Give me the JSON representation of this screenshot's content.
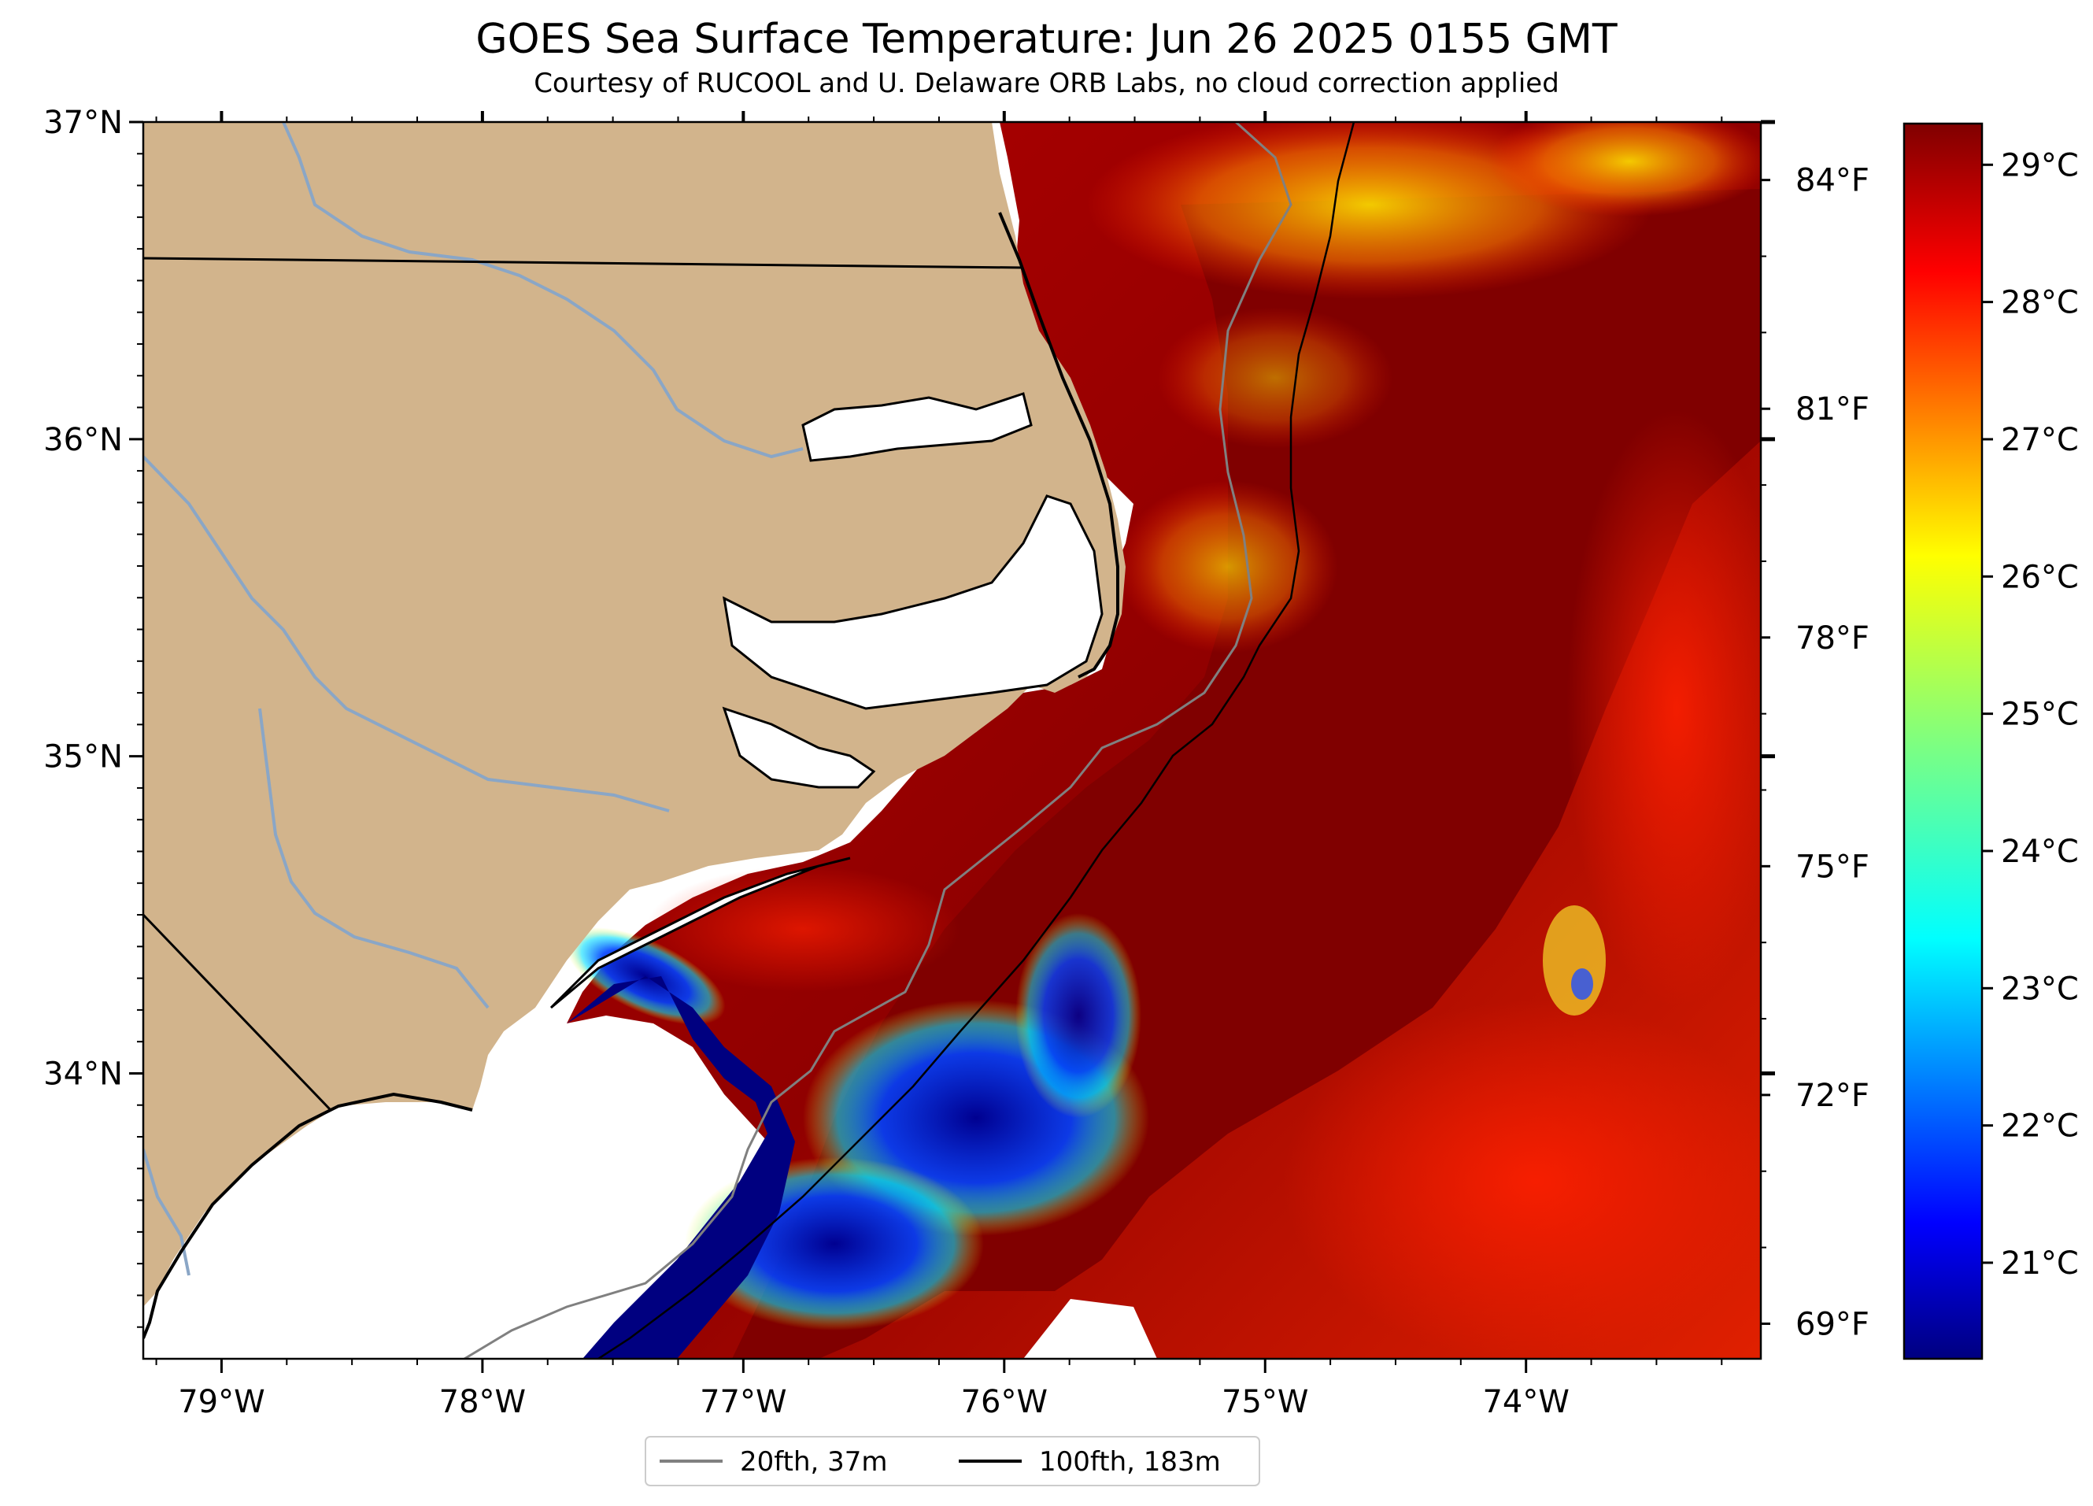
{
  "title": "GOES Sea Surface Temperature: Jun 26 2025 0155 GMT",
  "subtitle": "Courtesy of RUCOOL and U. Delaware ORB Labs, no cloud correction applied",
  "map": {
    "lon_range": [
      -79.3,
      -73.1
    ],
    "lat_range": [
      33.1,
      37.0
    ],
    "lat_ticks": [
      {
        "value": 37,
        "label": "37°N"
      },
      {
        "value": 36,
        "label": "36°N"
      },
      {
        "value": 35,
        "label": "35°N"
      },
      {
        "value": 34,
        "label": "34°N"
      }
    ],
    "lon_ticks": [
      {
        "value": -79,
        "label": "79°W"
      },
      {
        "value": -78,
        "label": "78°W"
      },
      {
        "value": -77,
        "label": "77°W"
      },
      {
        "value": -76,
        "label": "76°W"
      },
      {
        "value": -75,
        "label": "75°W"
      },
      {
        "value": -74,
        "label": "74°W"
      }
    ],
    "fahrenheit_ticks": [
      {
        "value": 84,
        "label": "84°F"
      },
      {
        "value": 81,
        "label": "81°F"
      },
      {
        "value": 78,
        "label": "78°F"
      },
      {
        "value": 75,
        "label": "75°F"
      },
      {
        "value": 72,
        "label": "72°F"
      },
      {
        "value": 69,
        "label": "69°F"
      }
    ],
    "colors": {
      "land": "#d2b48c",
      "rivers": "#8aa6c6",
      "warm_water": "#800000",
      "coastline": "#000000",
      "isobath_20fth": "#808080",
      "isobath_100fth": "#000000"
    }
  },
  "colorbar": {
    "cmap": "jet",
    "range_c": [
      20.3,
      29.3
    ],
    "ticks": [
      {
        "value": 29,
        "label": "29°C"
      },
      {
        "value": 28,
        "label": "28°C"
      },
      {
        "value": 27,
        "label": "27°C"
      },
      {
        "value": 26,
        "label": "26°C"
      },
      {
        "value": 25,
        "label": "25°C"
      },
      {
        "value": 24,
        "label": "24°C"
      },
      {
        "value": 23,
        "label": "23°C"
      },
      {
        "value": 22,
        "label": "22°C"
      },
      {
        "value": 21,
        "label": "21°C"
      }
    ]
  },
  "legend": {
    "items": [
      {
        "label": "20fth, 37m",
        "color": "#808080"
      },
      {
        "label": "100fth, 183m",
        "color": "#000000"
      }
    ]
  }
}
